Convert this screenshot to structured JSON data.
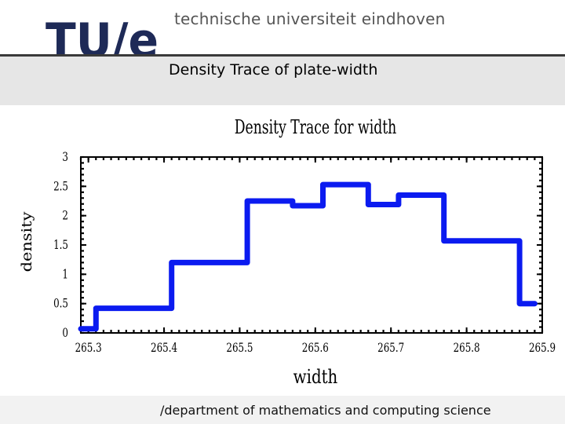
{
  "header": {
    "logo_text": "TU/e",
    "university_name": "technische universiteit eindhoven",
    "colors": {
      "logo": "#1e2a57",
      "slash": "#1e2a57"
    }
  },
  "slide": {
    "title": "Density Trace of plate-width"
  },
  "footer": {
    "text": "/department of mathematics and computing science"
  },
  "chart_data": {
    "type": "line",
    "title": "Density Trace for width",
    "xlabel": "width",
    "ylabel": "density",
    "xlim": [
      265.29,
      265.9
    ],
    "ylim": [
      0,
      3
    ],
    "xticks": [
      265.3,
      265.4,
      265.5,
      265.6,
      265.7,
      265.8,
      265.9
    ],
    "xtick_labels": [
      "265.3",
      "265.4",
      "265.5",
      "265.6",
      "265.7",
      "265.8",
      "265.9"
    ],
    "yticks": [
      0,
      0.5,
      1,
      1.5,
      2,
      2.5,
      3
    ],
    "ytick_labels": [
      "0",
      "0.5",
      "1",
      "1.5",
      "2",
      "2.5",
      "3"
    ],
    "grid": false,
    "legend": "none",
    "line_color": "#0b1bf0",
    "series": [
      {
        "x": [
          265.29,
          265.31,
          265.31,
          265.41,
          265.41,
          265.51,
          265.51,
          265.57,
          265.57,
          265.61,
          265.61,
          265.67,
          265.67,
          265.71,
          265.71,
          265.77,
          265.77,
          265.87,
          265.87,
          265.89
        ],
        "y": [
          0.07,
          0.07,
          0.42,
          0.42,
          1.2,
          1.2,
          2.25,
          2.25,
          2.17,
          2.17,
          2.53,
          2.53,
          2.19,
          2.19,
          2.35,
          2.35,
          1.57,
          1.57,
          0.5,
          0.5
        ]
      }
    ]
  }
}
